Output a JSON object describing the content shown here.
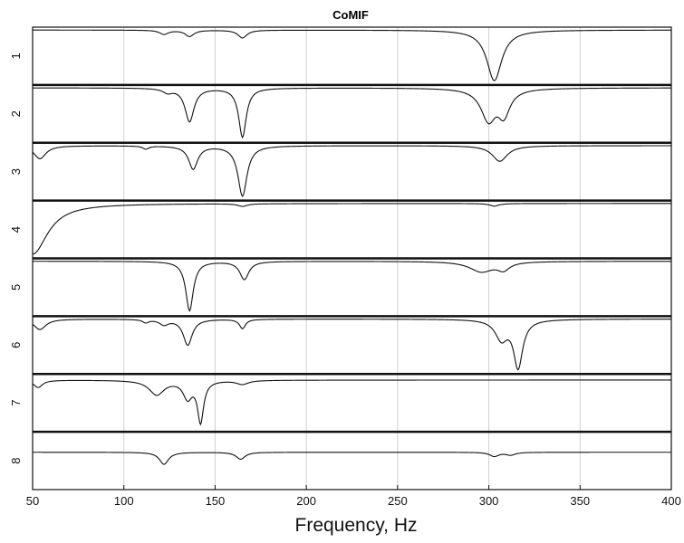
{
  "chart_data": {
    "type": "line",
    "title": "CoMIF",
    "xlabel": "Frequency, Hz",
    "ylabel": "",
    "xlim": [
      50,
      400
    ],
    "x_ticks": [
      "50",
      "100",
      "150",
      "200",
      "250",
      "300",
      "350",
      "400"
    ],
    "x_tick_values": [
      50,
      100,
      150,
      200,
      250,
      300,
      350,
      400
    ],
    "grid": true,
    "rows": [
      {
        "label": "1",
        "dips": [
          [
            122,
            0.08,
            3
          ],
          [
            136,
            0.12,
            3
          ],
          [
            165,
            0.15,
            3
          ],
          [
            303,
            0.97,
            5
          ]
        ],
        "baseline": 0.02
      },
      {
        "label": "2",
        "dips": [
          [
            124,
            0.08,
            3
          ],
          [
            136,
            0.65,
            3
          ],
          [
            165,
            0.95,
            2.5
          ],
          [
            300,
            0.65,
            5
          ],
          [
            308,
            0.55,
            4
          ]
        ],
        "baseline": 0.02
      },
      {
        "label": "3",
        "dips": [
          [
            54,
            0.25,
            4
          ],
          [
            112,
            0.06,
            2
          ],
          [
            138,
            0.45,
            3
          ],
          [
            165,
            0.97,
            3
          ],
          [
            306,
            0.3,
            5
          ]
        ],
        "baseline": 0.02
      },
      {
        "label": "4",
        "dips": [
          [
            50,
            0.97,
            10
          ],
          [
            165,
            0.05,
            3
          ],
          [
            303,
            0.05,
            3
          ]
        ],
        "baseline": 0.02
      },
      {
        "label": "5",
        "dips": [
          [
            136,
            0.95,
            2.5
          ],
          [
            166,
            0.35,
            3
          ],
          [
            296,
            0.2,
            8
          ],
          [
            308,
            0.15,
            4
          ]
        ],
        "baseline": 0.02
      },
      {
        "label": "6",
        "dips": [
          [
            54,
            0.2,
            4
          ],
          [
            112,
            0.06,
            2
          ],
          [
            122,
            0.1,
            3
          ],
          [
            135,
            0.5,
            3
          ],
          [
            165,
            0.18,
            2
          ],
          [
            307,
            0.4,
            4
          ],
          [
            316,
            0.97,
            3
          ]
        ],
        "baseline": 0.02
      },
      {
        "label": "7",
        "dips": [
          [
            53,
            0.15,
            3
          ],
          [
            118,
            0.3,
            5
          ],
          [
            135,
            0.38,
            3
          ],
          [
            142,
            0.9,
            2
          ],
          [
            165,
            0.08,
            4
          ]
        ],
        "baseline": 0.08
      },
      {
        "label": "8",
        "dips": [
          [
            122,
            0.35,
            3
          ],
          [
            164,
            0.2,
            3
          ],
          [
            303,
            0.12,
            3
          ],
          [
            312,
            0.08,
            3
          ]
        ],
        "baseline": 0.35
      }
    ]
  }
}
